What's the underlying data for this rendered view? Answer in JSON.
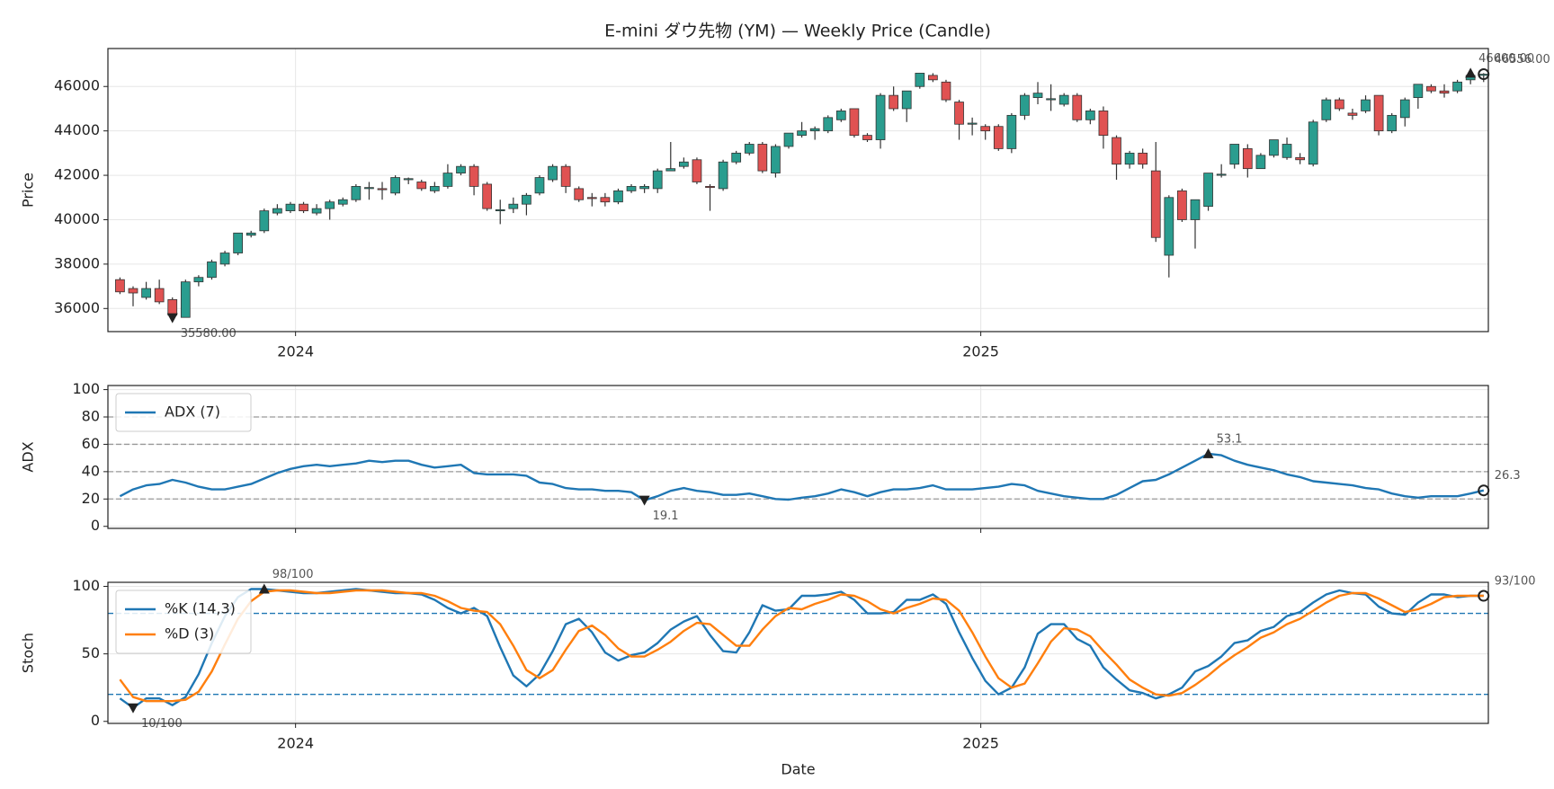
{
  "chart_data": [
    {
      "type": "candlestick",
      "title": "E-mini ダウ先物 (YM) — Weekly Price (Candle)",
      "ylabel": "Price",
      "x": [
        0,
        1,
        2,
        3,
        4,
        5,
        6,
        7,
        8,
        9,
        10,
        11,
        12,
        13,
        14,
        15,
        16,
        17,
        18,
        19,
        20,
        21,
        22,
        23,
        24,
        25,
        26,
        27,
        28,
        29,
        30,
        31,
        32,
        33,
        34,
        35,
        36,
        37,
        38,
        39,
        40,
        41,
        42,
        43,
        44,
        45,
        46,
        47,
        48,
        49,
        50,
        51,
        52,
        53,
        54,
        55,
        56,
        57,
        58,
        59,
        60,
        61,
        62,
        63,
        64,
        65,
        66,
        67,
        68,
        69,
        70,
        71,
        72,
        73,
        74,
        75,
        76,
        77,
        78,
        79,
        80,
        81,
        82,
        83,
        84,
        85,
        86,
        87,
        88,
        89,
        90,
        91,
        92,
        93,
        94,
        95,
        96,
        97,
        98,
        99,
        100,
        101,
        102,
        103,
        104
      ],
      "open": [
        37300,
        36900,
        36500,
        36900,
        36400,
        35600,
        37200,
        37400,
        38000,
        38500,
        39300,
        39500,
        40300,
        40400,
        40700,
        40300,
        40500,
        40700,
        40900,
        41400,
        41400,
        41200,
        41800,
        41700,
        41300,
        41500,
        42100,
        42400,
        41600,
        40400,
        40500,
        40700,
        41200,
        41800,
        42400,
        41400,
        41000,
        41000,
        40800,
        41300,
        41400,
        41400,
        42200,
        42400,
        42700,
        41500,
        41400,
        42600,
        43000,
        43400,
        42100,
        43300,
        43800,
        44000,
        44000,
        44500,
        45000,
        43800,
        43600,
        45600,
        45000,
        46000,
        46500,
        46200,
        45300,
        44300,
        44200,
        44200,
        43200,
        44700,
        45500,
        45400,
        45200,
        45600,
        44500,
        44900,
        43700,
        42500,
        43000,
        42200,
        38400,
        41300,
        40000,
        40600,
        42000,
        42500,
        43200,
        42300,
        42900,
        42800,
        42800,
        42500,
        44500,
        45400,
        44800,
        44900,
        45600,
        44000,
        44600,
        45500,
        46000,
        45800,
        45800,
        46300,
        46500
      ],
      "high": [
        37400,
        37000,
        37200,
        37300,
        36500,
        37300,
        37500,
        38200,
        38600,
        39400,
        39500,
        40500,
        40700,
        40800,
        40800,
        40700,
        40900,
        41000,
        41600,
        41700,
        41700,
        42000,
        41900,
        41800,
        41700,
        42500,
        42500,
        42500,
        41700,
        40900,
        41000,
        41200,
        42000,
        42500,
        42500,
        41500,
        41200,
        41200,
        41400,
        41600,
        41600,
        42300,
        43500,
        42800,
        42800,
        41600,
        42700,
        43100,
        43500,
        43500,
        43400,
        43900,
        44400,
        44200,
        44700,
        45000,
        45000,
        43900,
        45700,
        46000,
        45800,
        46600,
        46600,
        46300,
        45400,
        44600,
        44300,
        44300,
        44800,
        45700,
        46200,
        46100,
        45700,
        45700,
        45000,
        45100,
        43800,
        43100,
        43200,
        43500,
        41100,
        41400,
        40900,
        42100,
        42500,
        43400,
        43400,
        43000,
        43600,
        43700,
        43000,
        44500,
        45500,
        45500,
        45000,
        45600,
        45600,
        44800,
        45500,
        46100,
        46100,
        46100,
        46300,
        46600,
        46600
      ],
      "low": [
        36650,
        36100,
        36400,
        36200,
        35580,
        35600,
        37000,
        37300,
        37900,
        38400,
        39200,
        39400,
        40200,
        40300,
        40300,
        40200,
        40000,
        40600,
        40800,
        40900,
        40900,
        41100,
        41600,
        41300,
        41200,
        41400,
        42000,
        41100,
        40400,
        39800,
        40300,
        40200,
        41100,
        41700,
        41200,
        40800,
        40600,
        40600,
        40700,
        41200,
        41200,
        41200,
        42200,
        42300,
        41600,
        40400,
        41300,
        42500,
        42900,
        42100,
        41900,
        43200,
        43700,
        43600,
        43900,
        44400,
        43700,
        43500,
        43200,
        44900,
        44400,
        45900,
        46200,
        45300,
        43600,
        43800,
        43600,
        43100,
        43000,
        44500,
        45200,
        44900,
        45100,
        44400,
        44300,
        43200,
        41800,
        42300,
        42300,
        39000,
        37400,
        39900,
        38700,
        40400,
        41900,
        42300,
        41900,
        42300,
        42800,
        42700,
        42500,
        42400,
        44400,
        44900,
        44500,
        44800,
        43800,
        43900,
        44200,
        45000,
        45700,
        45500,
        45700,
        46100,
        46200
      ],
      "close": [
        36750,
        36700,
        36900,
        36300,
        35700,
        37200,
        37400,
        38100,
        38500,
        39400,
        39400,
        40400,
        40500,
        40700,
        40400,
        40500,
        40800,
        40900,
        41500,
        41450,
        41350,
        41900,
        41850,
        41400,
        41500,
        42100,
        42400,
        41500,
        40500,
        40450,
        40700,
        41100,
        41900,
        42400,
        41500,
        40900,
        40950,
        40800,
        41300,
        41500,
        41500,
        42200,
        42300,
        42600,
        41700,
        41450,
        42600,
        43000,
        43400,
        42200,
        43300,
        43900,
        44000,
        44100,
        44600,
        44900,
        43800,
        43600,
        45600,
        45000,
        45800,
        46600,
        46300,
        45400,
        44300,
        44350,
        44000,
        43200,
        44700,
        45600,
        45700,
        45450,
        45600,
        44500,
        44900,
        43800,
        42500,
        43000,
        42500,
        39200,
        41000,
        40000,
        40900,
        42100,
        42050,
        43400,
        42300,
        42900,
        43600,
        43400,
        42700,
        44400,
        45400,
        45000,
        44700,
        45400,
        44000,
        44700,
        45400,
        46100,
        45800,
        45700,
        46200,
        46500,
        46556
      ],
      "up_color": "#2a9d8f",
      "down_color": "#e05252",
      "xlim": [
        -0.92,
        104.36
      ],
      "xticks": [
        {
          "value": 13.39,
          "label": "2024"
        },
        {
          "value": 65.65,
          "label": "2025"
        }
      ],
      "ylim": [
        34960,
        47710
      ],
      "yticks": [
        36000,
        38000,
        40000,
        42000,
        44000,
        46000
      ],
      "grid": true,
      "annotations": [
        {
          "text": "35580.00",
          "x": 4,
          "y": 35580,
          "marker": "down"
        },
        {
          "text": "46600.00",
          "x": 103,
          "y": 46600,
          "marker": "up"
        },
        {
          "text": "46556.00",
          "x": 104,
          "y": 46556,
          "marker": "circle"
        }
      ]
    },
    {
      "type": "line",
      "ylabel": "ADX",
      "legend": "upper left",
      "x": [
        0,
        1,
        2,
        3,
        4,
        5,
        6,
        7,
        8,
        9,
        10,
        11,
        12,
        13,
        14,
        15,
        16,
        17,
        18,
        19,
        20,
        21,
        22,
        23,
        24,
        25,
        26,
        27,
        28,
        29,
        30,
        31,
        32,
        33,
        34,
        35,
        36,
        37,
        38,
        39,
        40,
        41,
        42,
        43,
        44,
        45,
        46,
        47,
        48,
        49,
        50,
        51,
        52,
        53,
        54,
        55,
        56,
        57,
        58,
        59,
        60,
        61,
        62,
        63,
        64,
        65,
        66,
        67,
        68,
        69,
        70,
        71,
        72,
        73,
        74,
        75,
        76,
        77,
        78,
        79,
        80,
        81,
        82,
        83,
        84,
        85,
        86,
        87,
        88,
        89,
        90,
        91,
        92,
        93,
        94,
        95,
        96,
        97,
        98,
        99,
        100,
        101,
        102,
        103,
        104
      ],
      "series": [
        {
          "name": "ADX (7)",
          "color": "#1f77b4",
          "values": [
            22,
            27,
            30,
            31,
            34,
            32,
            29,
            27,
            27,
            29,
            31,
            35,
            39,
            42,
            44,
            45,
            44,
            45,
            46,
            48,
            47,
            48,
            48,
            45,
            43,
            44,
            45,
            39,
            38,
            38,
            38,
            37,
            32,
            31,
            28,
            27,
            27,
            26,
            26,
            25,
            19.1,
            22,
            26,
            28,
            26,
            25,
            23,
            23,
            24,
            22,
            20,
            19.5,
            21,
            22,
            24,
            27,
            25,
            22,
            25,
            27,
            27,
            28,
            30,
            27,
            27,
            27,
            28,
            29,
            31,
            30,
            26,
            24,
            22,
            21,
            20,
            20,
            23,
            28,
            33,
            34,
            38,
            43,
            48,
            53.1,
            52,
            48,
            45,
            43,
            41,
            38,
            36,
            33,
            32,
            31,
            30,
            28,
            27,
            24,
            22,
            21,
            22,
            22,
            22,
            24,
            26.3
          ]
        }
      ],
      "xlim": [
        -0.92,
        104.36
      ],
      "ylim": [
        -1.5,
        103
      ],
      "yticks": [
        0,
        20,
        40,
        60,
        80,
        100
      ],
      "grid": true,
      "hlines": [
        20,
        40,
        60,
        80
      ],
      "hline_color": "#999999",
      "annotations": [
        {
          "text": "53.1",
          "x": 83,
          "y": 53.1,
          "marker": "up"
        },
        {
          "text": "19.1",
          "x": 40,
          "y": 19.1,
          "marker": "down"
        },
        {
          "text": "26.3",
          "x": 104,
          "y": 26.3,
          "marker": "circle"
        }
      ]
    },
    {
      "type": "line",
      "ylabel": "Stoch",
      "xlabel": "Date",
      "legend": "upper left",
      "x": [
        0,
        1,
        2,
        3,
        4,
        5,
        6,
        7,
        8,
        9,
        10,
        11,
        12,
        13,
        14,
        15,
        16,
        17,
        18,
        19,
        20,
        21,
        22,
        23,
        24,
        25,
        26,
        27,
        28,
        29,
        30,
        31,
        32,
        33,
        34,
        35,
        36,
        37,
        38,
        39,
        40,
        41,
        42,
        43,
        44,
        45,
        46,
        47,
        48,
        49,
        50,
        51,
        52,
        53,
        54,
        55,
        56,
        57,
        58,
        59,
        60,
        61,
        62,
        63,
        64,
        65,
        66,
        67,
        68,
        69,
        70,
        71,
        72,
        73,
        74,
        75,
        76,
        77,
        78,
        79,
        80,
        81,
        82,
        83,
        84,
        85,
        86,
        87,
        88,
        89,
        90,
        91,
        92,
        93,
        94,
        95,
        96,
        97,
        98,
        99,
        100,
        101,
        102,
        103,
        104
      ],
      "series": [
        {
          "name": "%K (14,3)",
          "color": "#1f77b4",
          "values": [
            17,
            10,
            17,
            17,
            12,
            18,
            35,
            58,
            78,
            92,
            98,
            98,
            97,
            96,
            95,
            95,
            96,
            97,
            98,
            97,
            96,
            95,
            95,
            94,
            90,
            84,
            80,
            84,
            78,
            55,
            34,
            26,
            35,
            52,
            72,
            76,
            66,
            51,
            45,
            49,
            51,
            58,
            68,
            74,
            78,
            64,
            52,
            51,
            66,
            86,
            82,
            83,
            93,
            93,
            94,
            96,
            90,
            80,
            80,
            81,
            90,
            90,
            94,
            87,
            66,
            47,
            30,
            20,
            25,
            40,
            65,
            72,
            72,
            61,
            56,
            40,
            31,
            23,
            21,
            17,
            20,
            25,
            37,
            41,
            48,
            58,
            60,
            67,
            70,
            78,
            81,
            88,
            94,
            97,
            95,
            94,
            85,
            80,
            79,
            88,
            94,
            94,
            92,
            93,
            93
          ]
        },
        {
          "name": "%D (3)",
          "color": "#ff7f0e",
          "values": [
            31,
            18,
            15,
            15,
            15,
            16,
            22,
            37,
            57,
            76,
            89,
            96,
            97,
            97,
            96,
            95,
            95,
            96,
            97,
            97,
            97,
            96,
            95,
            95,
            93,
            89,
            84,
            82,
            81,
            72,
            56,
            38,
            32,
            38,
            53,
            67,
            71,
            64,
            54,
            48,
            48,
            53,
            59,
            67,
            73,
            72,
            64,
            56,
            56,
            68,
            78,
            84,
            83,
            87,
            90,
            94,
            93,
            89,
            83,
            80,
            84,
            87,
            91,
            90,
            82,
            66,
            48,
            32,
            25,
            28,
            43,
            59,
            69,
            68,
            63,
            52,
            42,
            31,
            25,
            20,
            19,
            21,
            27,
            34,
            42,
            49,
            55,
            62,
            66,
            72,
            76,
            82,
            88,
            93,
            95,
            95,
            91,
            86,
            81,
            83,
            87,
            92,
            93,
            93,
            93
          ]
        }
      ],
      "xlim": [
        -0.92,
        104.36
      ],
      "xticks": [
        {
          "value": 13.39,
          "label": "2024"
        },
        {
          "value": 65.65,
          "label": "2025"
        }
      ],
      "ylim": [
        -1.5,
        103
      ],
      "yticks": [
        0,
        50,
        100
      ],
      "grid": true,
      "hlines": [
        20,
        80
      ],
      "hline_color": "#1f77b4",
      "annotations": [
        {
          "text": "98/100",
          "x": 11,
          "y": 98,
          "marker": "up"
        },
        {
          "text": "10/100",
          "x": 1,
          "y": 10,
          "marker": "down"
        },
        {
          "text": "93/100",
          "x": 104,
          "y": 93,
          "marker": "circle"
        }
      ]
    }
  ]
}
